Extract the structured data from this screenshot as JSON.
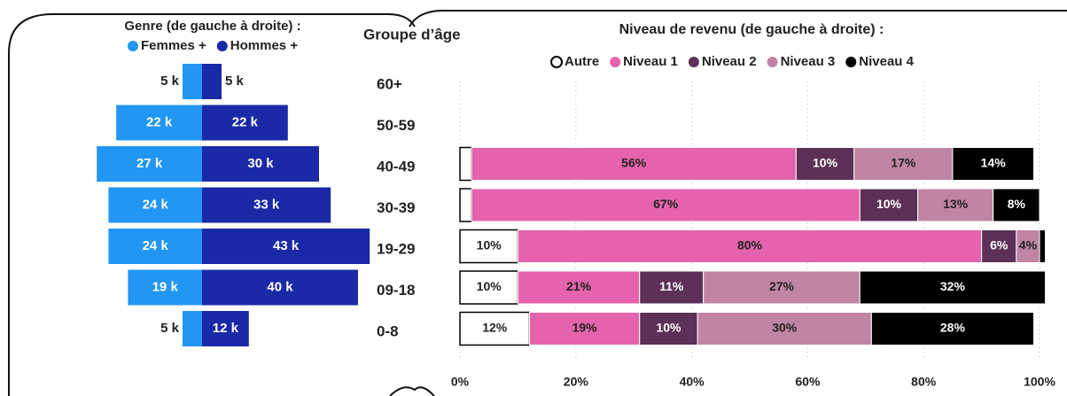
{
  "chart_data": [
    {
      "type": "pyramid",
      "legend_title": "Genre (de gauche à droite) :",
      "categories_title": "Groupe d’âge",
      "categories": [
        "60+",
        "50-59",
        "40-49",
        "30-39",
        "19-29",
        "09-18",
        "0-8"
      ],
      "series": [
        {
          "name": "Femmes +",
          "color": "#2196f3",
          "side": "left",
          "values": [
            5,
            22,
            27,
            24,
            24,
            19,
            5
          ],
          "value_labels": [
            "5 k",
            "22 k",
            "27 k",
            "24 k",
            "24 k",
            "19 k",
            "5 k"
          ]
        },
        {
          "name": "Hommes +",
          "color": "#1a2aa6",
          "side": "right",
          "values": [
            5,
            22,
            30,
            33,
            43,
            40,
            12
          ],
          "value_labels": [
            "5 k",
            "22 k",
            "30 k",
            "33 k",
            "43 k",
            "40 k",
            "12 k"
          ]
        }
      ]
    },
    {
      "type": "stacked_bar",
      "title": "Niveau de revenu (de gauche à droite) :",
      "xlim": [
        0,
        100
      ],
      "xticks": [
        {
          "value": 0,
          "label": "0%"
        },
        {
          "value": 20,
          "label": "20%"
        },
        {
          "value": 40,
          "label": "40%"
        },
        {
          "value": 60,
          "label": "60%"
        },
        {
          "value": 80,
          "label": "80%"
        },
        {
          "value": 100,
          "label": "100%"
        }
      ],
      "grid": true,
      "series": [
        {
          "name": "Autre",
          "color": "#ffffff",
          "values": [
            null,
            null,
            2,
            2,
            10,
            10,
            12
          ],
          "value_labels": [
            null,
            null,
            null,
            null,
            "10%",
            "10%",
            "12%"
          ]
        },
        {
          "name": "Niveau 1",
          "color": "#e463ac",
          "values": [
            null,
            null,
            56,
            67,
            80,
            21,
            19
          ],
          "value_labels": [
            null,
            null,
            "56%",
            "67%",
            "80%",
            "21%",
            "19%"
          ]
        },
        {
          "name": "Niveau 2",
          "color": "#5c3057",
          "values": [
            null,
            null,
            10,
            10,
            6,
            11,
            10
          ],
          "value_labels": [
            null,
            null,
            "10%",
            "10%",
            "6%",
            "11%",
            "10%"
          ]
        },
        {
          "name": "Niveau 3",
          "color": "#c084a5",
          "values": [
            null,
            null,
            17,
            13,
            4,
            27,
            30
          ],
          "value_labels": [
            null,
            null,
            "17%",
            "13%",
            "4%",
            "27%",
            "30%"
          ]
        },
        {
          "name": "Niveau 4",
          "color": "#000000",
          "values": [
            null,
            null,
            14,
            8,
            1,
            32,
            28
          ],
          "value_labels": [
            null,
            null,
            "14%",
            "8%",
            null,
            "32%",
            "28%"
          ]
        }
      ]
    }
  ]
}
